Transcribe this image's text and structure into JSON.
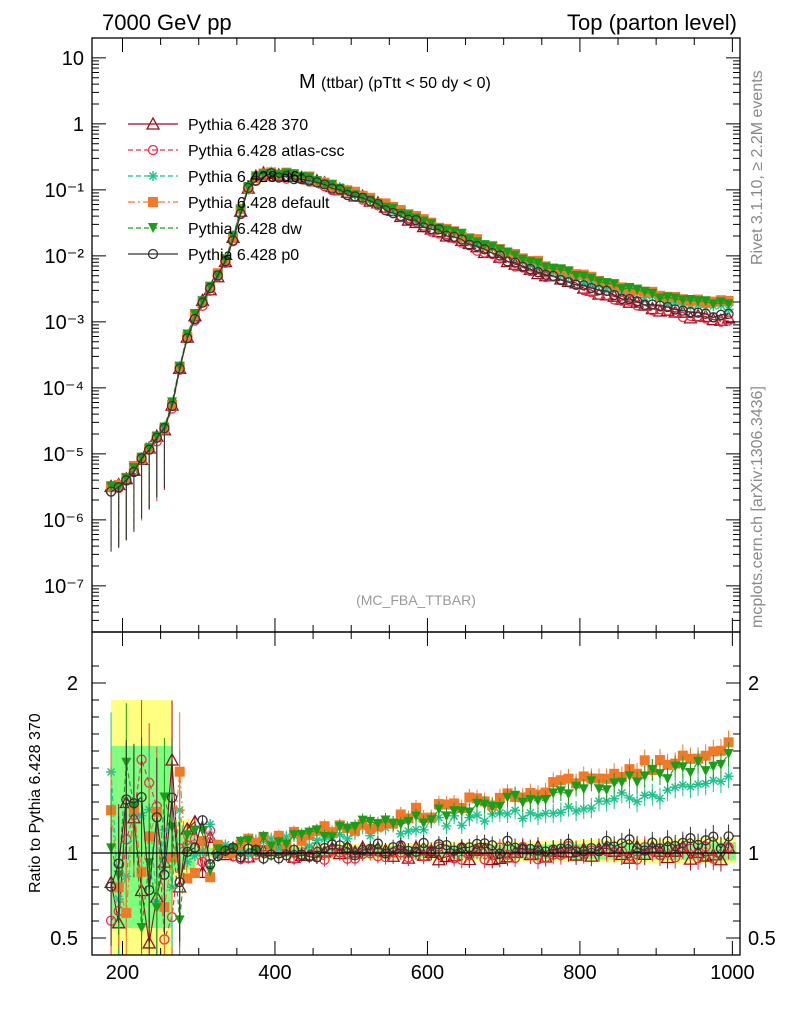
{
  "header": {
    "left": "7000 GeV pp",
    "right": "Top (parton level)"
  },
  "side_labels": {
    "rivet": "Rivet 3.1.10, ≥ 2.2M events",
    "mcplots": "mcplots.cern.ch [arXiv:1306.3436]"
  },
  "chart_data": {
    "type": "line",
    "title_main": "M",
    "title_sub": "(ttbar) (pTtt < 50 dy < 0)",
    "watermark": "(MC_FBA_TTBAR)",
    "main_panel": {
      "ylabel": "",
      "yscale": "log",
      "y_tick_labels": [
        "10",
        "1",
        "10⁻¹",
        "10⁻²",
        "10⁻³",
        "10⁻⁴",
        "10⁻⁵",
        "10⁻⁶",
        "10⁻⁷"
      ],
      "ylim": [
        2e-08,
        20
      ]
    },
    "ratio_panel": {
      "ylabel": "Ratio to Pythia 6.428 370",
      "y_tick_labels": [
        "2",
        "1",
        "0.5"
      ],
      "ylim": [
        0.4,
        2.3
      ]
    },
    "xaxis": {
      "tick_labels": [
        "200",
        "400",
        "600",
        "800",
        "1000"
      ],
      "xlim": [
        160,
        1010
      ]
    },
    "legend": {
      "placement": "top-left"
    },
    "series": [
      {
        "name": "Pythia 6.428 370",
        "color": "#9b0d1b",
        "marker": "triangle-open",
        "dash": "solid",
        "peak": 0.175,
        "tail": 0.00108,
        "ratio_trend": 0.0,
        "seed": 1
      },
      {
        "name": "Pythia 6.428 atlas-csc",
        "color": "#e8304a",
        "marker": "circle-open",
        "dash": "dashed",
        "peak": 0.165,
        "tail": 0.0011,
        "ratio_trend": 0.0,
        "seed": 2
      },
      {
        "name": "Pythia 6.428 d6t",
        "color": "#1fc28c",
        "marker": "star",
        "dash": "dashed",
        "peak": 0.178,
        "tail": 0.0016,
        "ratio_trend": 0.42,
        "seed": 3
      },
      {
        "name": "Pythia 6.428 default",
        "color": "#f07a2a",
        "marker": "square",
        "dash": "dashdot",
        "peak": 0.182,
        "tail": 0.0019,
        "ratio_trend": 0.62,
        "seed": 4
      },
      {
        "name": "Pythia 6.428 dw",
        "color": "#1a9e1a",
        "marker": "triangle-down",
        "dash": "dashed",
        "peak": 0.18,
        "tail": 0.0018,
        "ratio_trend": 0.55,
        "seed": 5
      },
      {
        "name": "Pythia 6.428 p0",
        "color": "#333333",
        "marker": "circle-open",
        "dash": "solid",
        "peak": 0.168,
        "tail": 0.00125,
        "ratio_trend": 0.06,
        "seed": 6
      }
    ],
    "shape": {
      "x": [
        190,
        200,
        210,
        220,
        230,
        240,
        250,
        260,
        270,
        280,
        290,
        300,
        310,
        320,
        330,
        340,
        350,
        360,
        370,
        380,
        400,
        420,
        450,
        500,
        550,
        600,
        650,
        700,
        750,
        800,
        850,
        900,
        950,
        1000
      ],
      "y": [
        3e-06,
        3.5e-06,
        5e-06,
        7e-06,
        1e-05,
        1.5e-05,
        2e-05,
        3e-05,
        0.0001,
        0.0004,
        0.0009,
        0.0016,
        0.0025,
        0.004,
        0.0065,
        0.012,
        0.03,
        0.08,
        0.14,
        0.17,
        0.175,
        0.165,
        0.14,
        0.09,
        0.05,
        0.028,
        0.016,
        0.009,
        0.0055,
        0.0035,
        0.0023,
        0.0016,
        0.0012,
        0.0011
      ]
    },
    "band_reference": {
      "outer_color": "#ffff80",
      "inner_color": "#7fff7f"
    }
  }
}
